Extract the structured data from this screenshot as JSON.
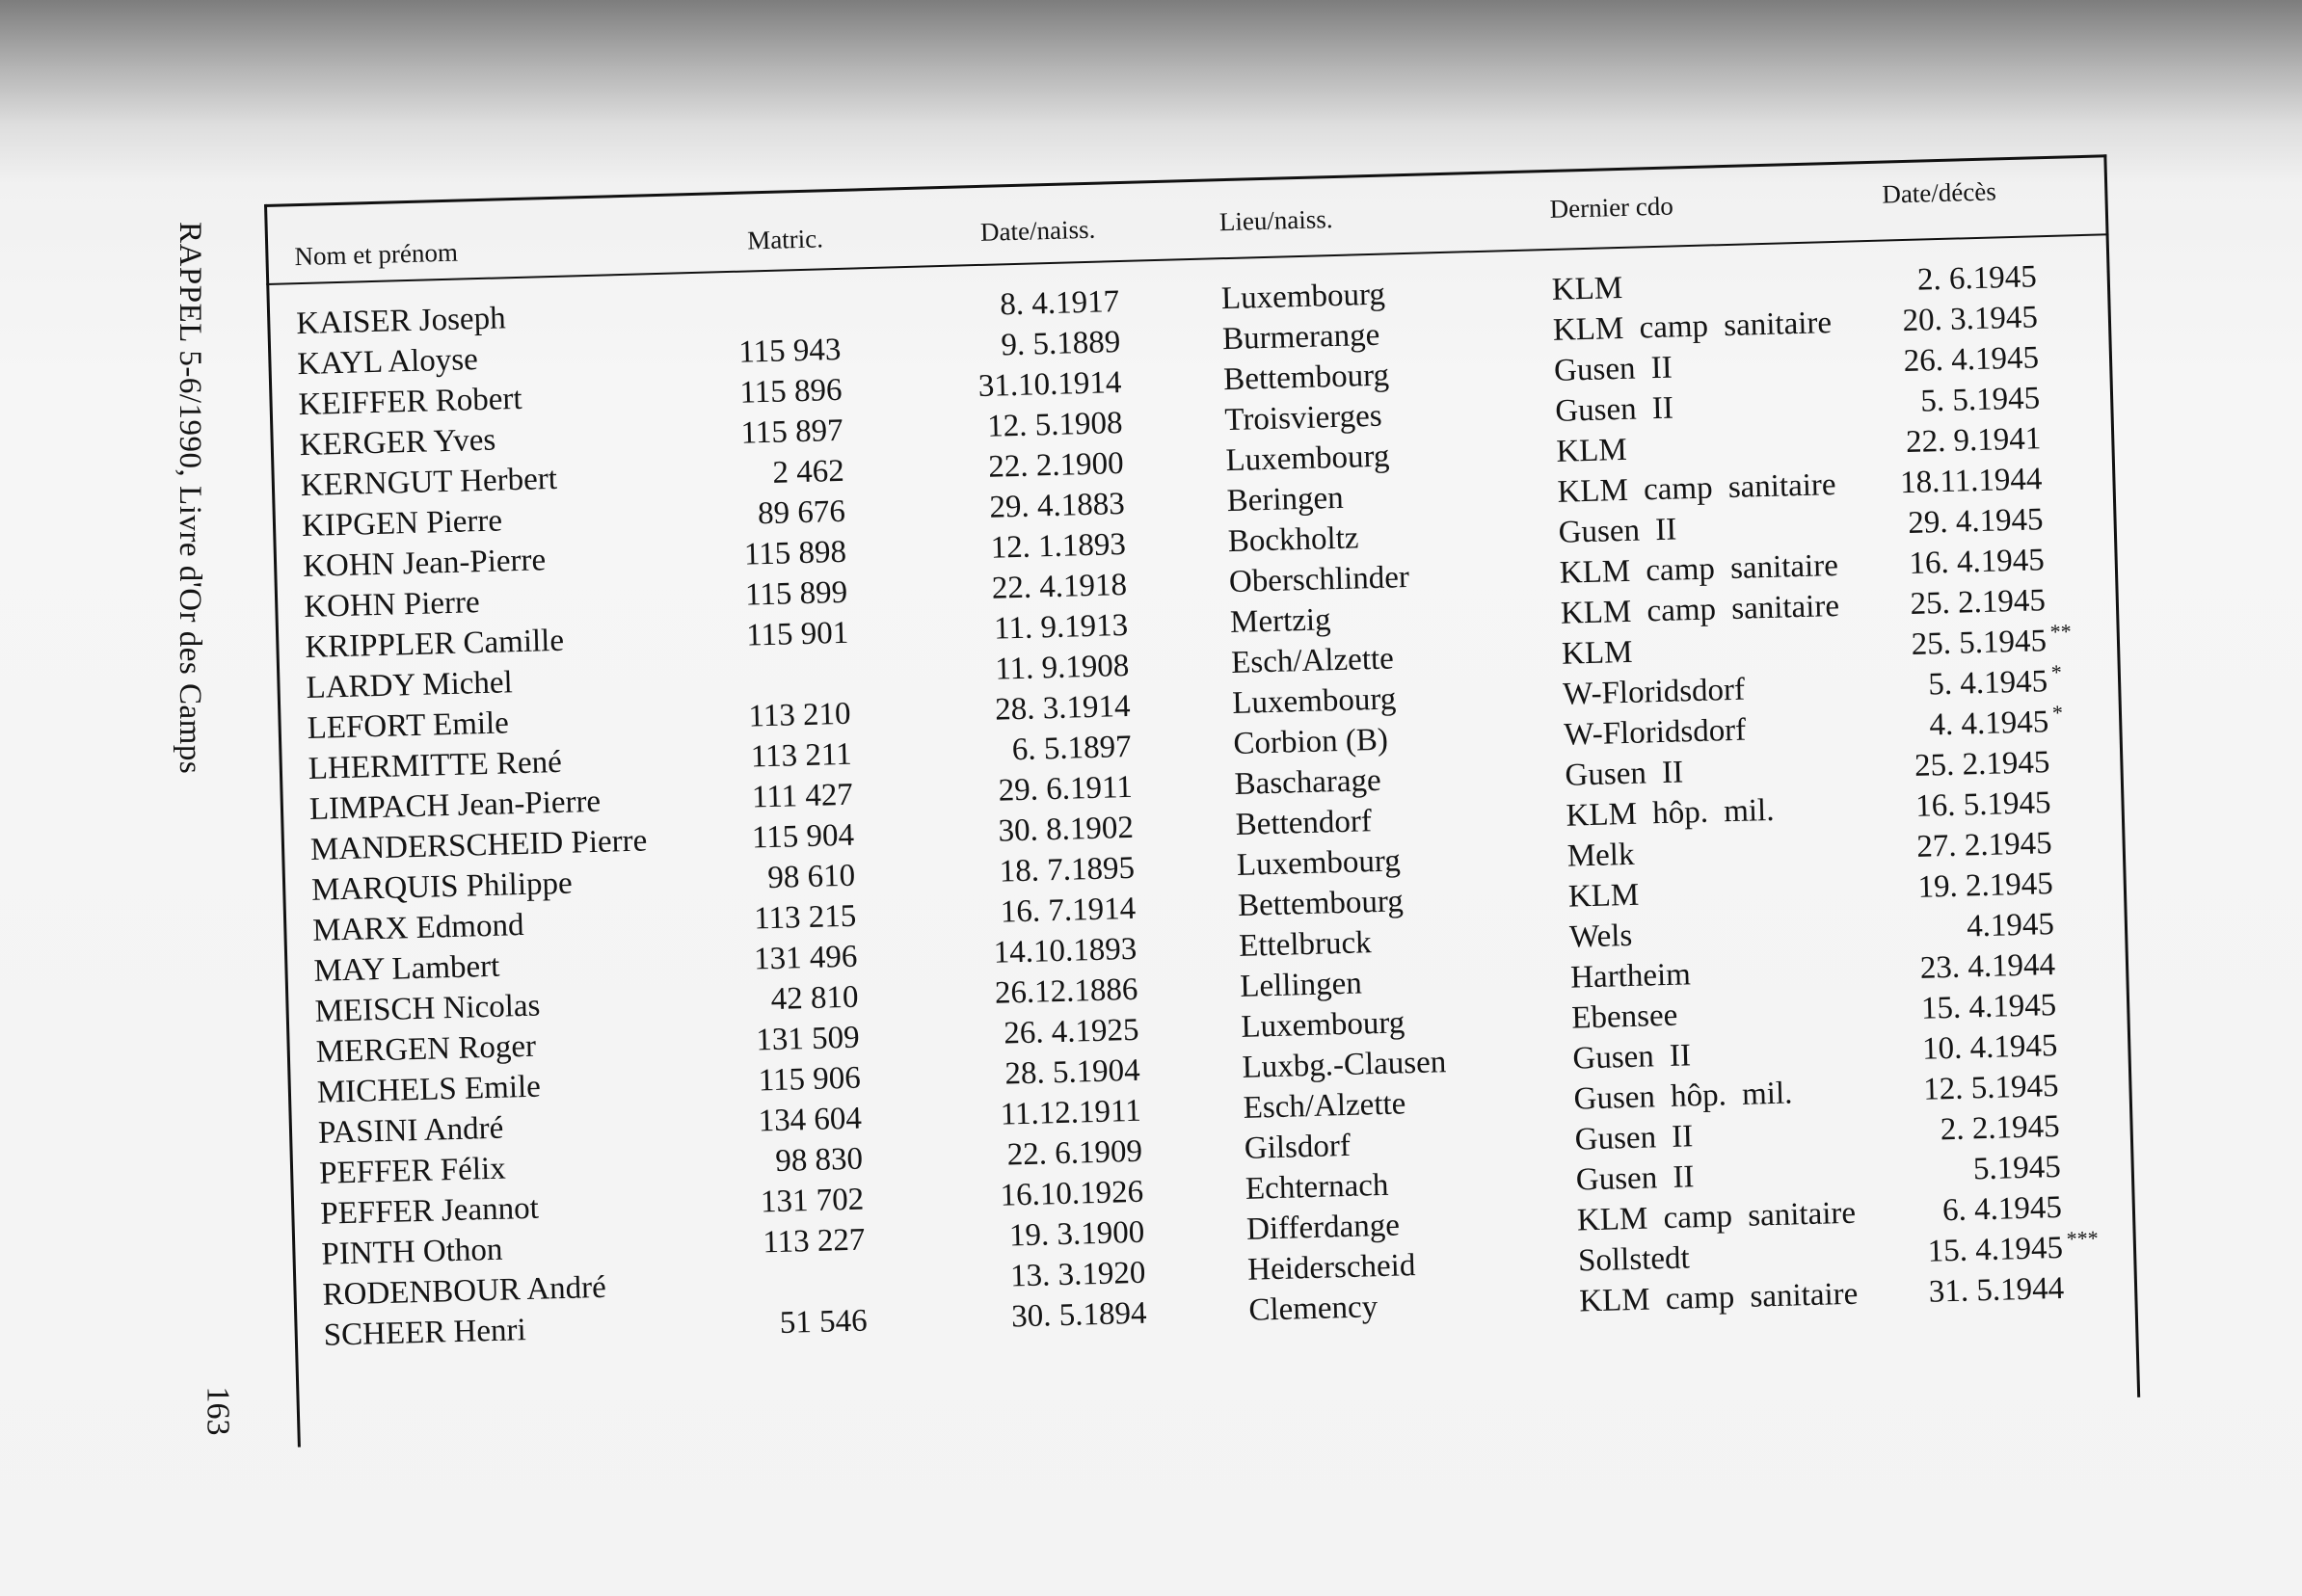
{
  "margin": {
    "running_title": "RAPPEL 5-6/1990, Livre d'Or des Camps",
    "page_number": "163"
  },
  "table": {
    "headers": {
      "name": "Nom et prénom",
      "matric": "Matric.",
      "birth_date": "Date/naiss.",
      "birth_place": "Lieu/naiss.",
      "last_cdo": "Dernier cdo",
      "death_date": "Date/décès"
    },
    "rows": [
      {
        "name": "KAISER Joseph",
        "matric": "",
        "birth_date": "8. 4.1917",
        "birth_place": "Luxembourg",
        "last_cdo": "KLM",
        "death_date": "2. 6.1945",
        "note": ""
      },
      {
        "name": "KAYL Aloyse",
        "matric": "115 943",
        "birth_date": "9. 5.1889",
        "birth_place": "Burmerange",
        "last_cdo": "KLM camp sanitaire",
        "death_date": "20. 3.1945",
        "note": ""
      },
      {
        "name": "KEIFFER Robert",
        "matric": "115 896",
        "birth_date": "31.10.1914",
        "birth_place": "Bettembourg",
        "last_cdo": "Gusen II",
        "death_date": "26. 4.1945",
        "note": ""
      },
      {
        "name": "KERGER Yves",
        "matric": "115 897",
        "birth_date": "12. 5.1908",
        "birth_place": "Troisvierges",
        "last_cdo": "Gusen II",
        "death_date": "5. 5.1945",
        "note": ""
      },
      {
        "name": "KERNGUT Herbert",
        "matric": "2 462",
        "birth_date": "22. 2.1900",
        "birth_place": "Luxembourg",
        "last_cdo": "KLM",
        "death_date": "22. 9.1941",
        "note": ""
      },
      {
        "name": "KIPGEN Pierre",
        "matric": "89 676",
        "birth_date": "29. 4.1883",
        "birth_place": "Beringen",
        "last_cdo": "KLM camp sanitaire",
        "death_date": "18.11.1944",
        "note": ""
      },
      {
        "name": "KOHN Jean-Pierre",
        "matric": "115 898",
        "birth_date": "12. 1.1893",
        "birth_place": "Bockholtz",
        "last_cdo": "Gusen II",
        "death_date": "29. 4.1945",
        "note": ""
      },
      {
        "name": "KOHN Pierre",
        "matric": "115 899",
        "birth_date": "22. 4.1918",
        "birth_place": "Oberschlinder",
        "last_cdo": "KLM camp sanitaire",
        "death_date": "16. 4.1945",
        "note": ""
      },
      {
        "name": "KRIPPLER Camille",
        "matric": "115 901",
        "birth_date": "11. 9.1913",
        "birth_place": "Mertzig",
        "last_cdo": "KLM camp sanitaire",
        "death_date": "25. 2.1945",
        "note": ""
      },
      {
        "name": "LARDY Michel",
        "matric": "",
        "birth_date": "11. 9.1908",
        "birth_place": "Esch/Alzette",
        "last_cdo": "KLM",
        "death_date": "25. 5.1945",
        "note": "**"
      },
      {
        "name": "LEFORT Emile",
        "matric": "113 210",
        "birth_date": "28. 3.1914",
        "birth_place": "Luxembourg",
        "last_cdo": "W-Floridsdorf",
        "death_date": "5. 4.1945",
        "note": "*"
      },
      {
        "name": "LHERMITTE René",
        "matric": "113 211",
        "birth_date": "6. 5.1897",
        "birth_place": "Corbion (B)",
        "last_cdo": "W-Floridsdorf",
        "death_date": "4. 4.1945",
        "note": "*"
      },
      {
        "name": "LIMPACH Jean-Pierre",
        "matric": "111 427",
        "birth_date": "29. 6.1911",
        "birth_place": "Bascharage",
        "last_cdo": "Gusen II",
        "death_date": "25. 2.1945",
        "note": ""
      },
      {
        "name": "MANDERSCHEID Pierre",
        "matric": "115 904",
        "birth_date": "30. 8.1902",
        "birth_place": "Bettendorf",
        "last_cdo": "KLM hôp. mil.",
        "death_date": "16. 5.1945",
        "note": ""
      },
      {
        "name": "MARQUIS Philippe",
        "matric": "98 610",
        "birth_date": "18. 7.1895",
        "birth_place": "Luxembourg",
        "last_cdo": "Melk",
        "death_date": "27. 2.1945",
        "note": ""
      },
      {
        "name": "MARX Edmond",
        "matric": "113 215",
        "birth_date": "16. 7.1914",
        "birth_place": "Bettembourg",
        "last_cdo": "KLM",
        "death_date": "19. 2.1945",
        "note": ""
      },
      {
        "name": "MAY Lambert",
        "matric": "131 496",
        "birth_date": "14.10.1893",
        "birth_place": "Ettelbruck",
        "last_cdo": "Wels",
        "death_date": "4.1945",
        "note": ""
      },
      {
        "name": "MEISCH Nicolas",
        "matric": "42 810",
        "birth_date": "26.12.1886",
        "birth_place": "Lellingen",
        "last_cdo": "Hartheim",
        "death_date": "23. 4.1944",
        "note": ""
      },
      {
        "name": "MERGEN Roger",
        "matric": "131 509",
        "birth_date": "26. 4.1925",
        "birth_place": "Luxembourg",
        "last_cdo": "Ebensee",
        "death_date": "15. 4.1945",
        "note": ""
      },
      {
        "name": "MICHELS Emile",
        "matric": "115 906",
        "birth_date": "28. 5.1904",
        "birth_place": "Luxbg.-Clausen",
        "last_cdo": "Gusen II",
        "death_date": "10. 4.1945",
        "note": ""
      },
      {
        "name": "PASINI André",
        "matric": "134 604",
        "birth_date": "11.12.1911",
        "birth_place": "Esch/Alzette",
        "last_cdo": "Gusen hôp. mil.",
        "death_date": "12. 5.1945",
        "note": ""
      },
      {
        "name": "PEFFER Félix",
        "matric": "98 830",
        "birth_date": "22. 6.1909",
        "birth_place": "Gilsdorf",
        "last_cdo": "Gusen II",
        "death_date": "2. 2.1945",
        "note": ""
      },
      {
        "name": "PEFFER Jeannot",
        "matric": "131 702",
        "birth_date": "16.10.1926",
        "birth_place": "Echternach",
        "last_cdo": "Gusen II",
        "death_date": "5.1945",
        "note": ""
      },
      {
        "name": "PINTH Othon",
        "matric": "113 227",
        "birth_date": "19. 3.1900",
        "birth_place": "Differdange",
        "last_cdo": "KLM camp sanitaire",
        "death_date": "6. 4.1945",
        "note": ""
      },
      {
        "name": "RODENBOUR André",
        "matric": "",
        "birth_date": "13. 3.1920",
        "birth_place": "Heiderscheid",
        "last_cdo": "Sollstedt",
        "death_date": "15. 4.1945",
        "note": "***"
      },
      {
        "name": "SCHEER Henri",
        "matric": "51 546",
        "birth_date": "30. 5.1894",
        "birth_place": "Clemency",
        "last_cdo": "KLM camp sanitaire",
        "death_date": "31. 5.1944",
        "note": ""
      }
    ]
  }
}
